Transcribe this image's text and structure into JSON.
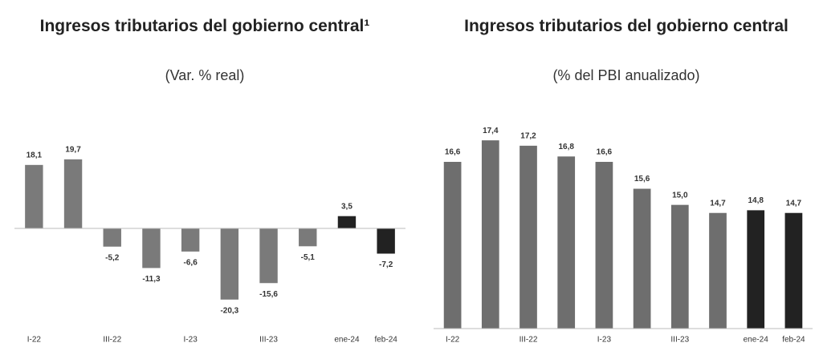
{
  "chart_data": [
    {
      "type": "bar",
      "title": "Ingresos tributarios del gobierno central¹",
      "subtitle": "(Var. % real)",
      "categories": [
        "I-22",
        null,
        "III-22",
        null,
        "I-23",
        null,
        "III-23",
        null,
        "ene-24",
        "feb-24"
      ],
      "values": [
        18.1,
        19.7,
        -5.2,
        -11.3,
        -6.6,
        -20.3,
        -15.6,
        -5.1,
        3.5,
        -7.2
      ],
      "value_labels": [
        "18,1",
        "19,7",
        "-5,2",
        "-11,3",
        "-6,6",
        "-20,3",
        "-15,6",
        "-5,1",
        "3,5",
        "-7,2"
      ],
      "colors": [
        "#7a7a7a",
        "#7a7a7a",
        "#7a7a7a",
        "#7a7a7a",
        "#7a7a7a",
        "#7a7a7a",
        "#7a7a7a",
        "#7a7a7a",
        "#222222",
        "#222222"
      ],
      "ylim": [
        -24,
        24
      ]
    },
    {
      "type": "bar",
      "title": "Ingresos tributarios del gobierno central",
      "subtitle": "(% del PBI anualizado)",
      "categories": [
        "I-22",
        null,
        "III-22",
        null,
        "I-23",
        null,
        "III-23",
        null,
        "ene-24",
        "feb-24"
      ],
      "values": [
        16.6,
        17.4,
        17.2,
        16.8,
        16.6,
        15.6,
        15.0,
        14.7,
        14.8,
        14.7
      ],
      "value_labels": [
        "16,6",
        "17,4",
        "17,2",
        "16,8",
        "16,6",
        "15,6",
        "15,0",
        "14,7",
        "14,8",
        "14,7"
      ],
      "colors": [
        "#6e6e6e",
        "#6e6e6e",
        "#6e6e6e",
        "#6e6e6e",
        "#6e6e6e",
        "#6e6e6e",
        "#6e6e6e",
        "#6e6e6e",
        "#222222",
        "#222222"
      ],
      "ylim": [
        10.4,
        18
      ]
    }
  ]
}
